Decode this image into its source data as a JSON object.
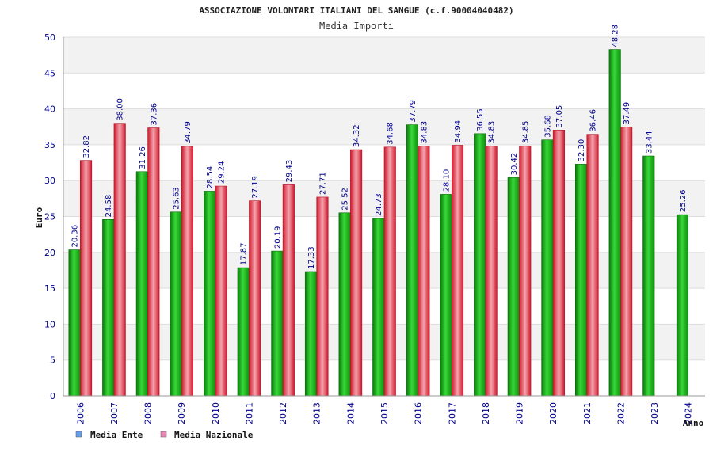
{
  "chart_data": {
    "type": "bar",
    "title": "ASSOCIAZIONE VOLONTARI ITALIANI DEL SANGUE (c.f.90004040482)",
    "subtitle": "Media Importi",
    "xlabel": "Anno",
    "ylabel": "Euro",
    "ylim": [
      0,
      50
    ],
    "yticks": [
      "0",
      "5",
      "10",
      "15",
      "20",
      "25",
      "30",
      "35",
      "40",
      "45",
      "50"
    ],
    "grid": true,
    "legend_position": "bottom-left",
    "categories": [
      "2006",
      "2007",
      "2008",
      "2009",
      "2010",
      "2011",
      "2012",
      "2013",
      "2014",
      "2015",
      "2016",
      "2017",
      "2018",
      "2019",
      "2020",
      "2021",
      "2022",
      "2023",
      "2024"
    ],
    "series": [
      {
        "name": "Media Ente",
        "color": "#1fb81f",
        "legend_swatch_color": "#6a9ff0",
        "values": [
          20.36,
          24.58,
          31.26,
          25.63,
          28.54,
          17.87,
          20.19,
          17.33,
          25.52,
          24.73,
          37.79,
          28.1,
          36.55,
          30.42,
          35.68,
          32.3,
          48.28,
          33.44,
          25.26
        ],
        "labels": [
          "20.36",
          "24.58",
          "31.26",
          "25.63",
          "28.54",
          "17.87",
          "20.19",
          "17.33",
          "25.52",
          "24.73",
          "37.79",
          "28.10",
          "36.55",
          "30.42",
          "35.68",
          "32.30",
          "48.28",
          "33.44",
          "25.26"
        ]
      },
      {
        "name": "Media Nazionale",
        "color": "#e8384a",
        "legend_swatch_color": "#e889b8",
        "values": [
          32.82,
          38.0,
          37.36,
          34.79,
          29.24,
          27.19,
          29.43,
          27.71,
          34.32,
          34.68,
          34.83,
          34.94,
          34.83,
          34.85,
          37.05,
          36.46,
          37.49,
          null,
          null
        ],
        "labels": [
          "32.82",
          "38.00",
          "37.36",
          "34.79",
          "29.24",
          "27.19",
          "29.43",
          "27.71",
          "34.32",
          "34.68",
          "34.83",
          "34.94",
          "34.83",
          "34.85",
          "37.05",
          "36.46",
          "37.49",
          null,
          null
        ]
      }
    ]
  }
}
